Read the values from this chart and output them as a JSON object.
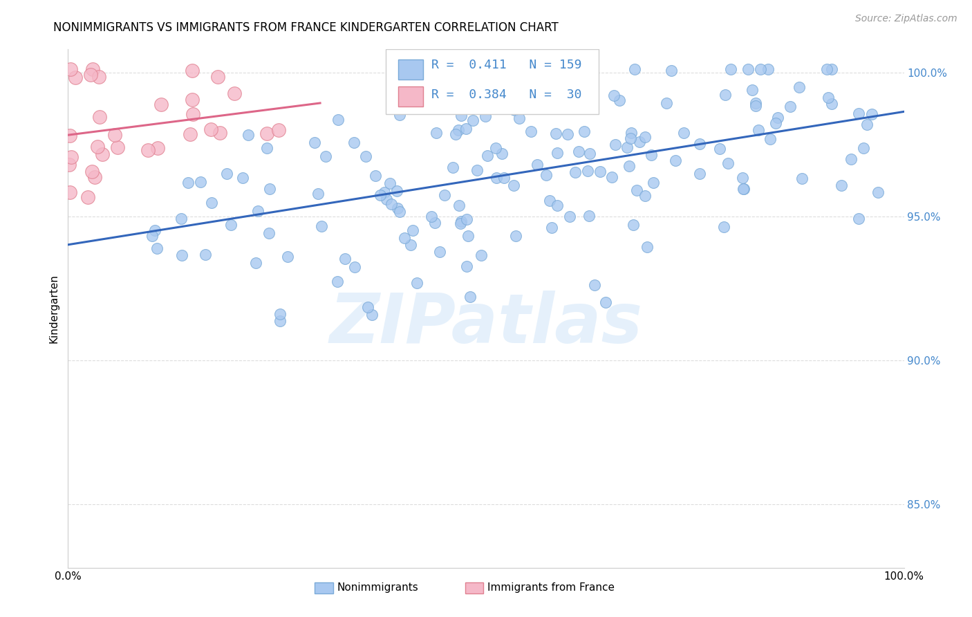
{
  "title": "NONIMMIGRANTS VS IMMIGRANTS FROM FRANCE KINDERGARTEN CORRELATION CHART",
  "source": "Source: ZipAtlas.com",
  "ylabel": "Kindergarten",
  "xlim": [
    0,
    1
  ],
  "ylim": [
    0.828,
    1.008
  ],
  "ytick_values": [
    0.85,
    0.9,
    0.95,
    1.0
  ],
  "xtick_values": [
    0,
    0.1,
    0.2,
    0.3,
    0.4,
    0.5,
    0.6,
    0.7,
    0.8,
    0.9,
    1.0
  ],
  "legend_labels": [
    "Nonimmigrants",
    "Immigrants from France"
  ],
  "legend_R": [
    0.411,
    0.384
  ],
  "legend_N": [
    159,
    30
  ],
  "blue_color": "#a8c8f0",
  "pink_color": "#f5b8c8",
  "blue_edge": "#7aaad8",
  "pink_edge": "#e08090",
  "trend_blue": "#3366bb",
  "trend_pink": "#dd6688",
  "axis_color": "#4488cc",
  "grid_color": "#dddddd",
  "background_color": "#ffffff",
  "watermark": "ZIPatlas",
  "title_fontsize": 12,
  "source_fontsize": 10,
  "legend_fontsize": 13,
  "axis_label_fontsize": 11,
  "seed": 42
}
